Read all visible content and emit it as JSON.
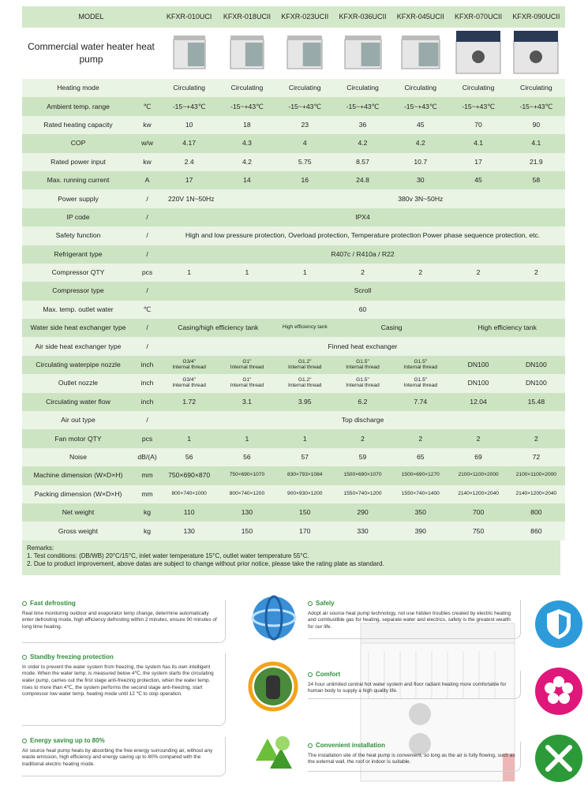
{
  "table": {
    "header": [
      "MODEL",
      "KFXR-010UCI",
      "KFXR-018UCII",
      "KFXR-023UCII",
      "KFXR-036UCII",
      "KFXR-045UCII",
      "KFXR-070UCII",
      "KFXR-090UCII"
    ],
    "product": "Commercial water heater heat pump",
    "rows": [
      {
        "label": "Heating mode",
        "unit": "",
        "cells": [
          "Circulating",
          "Circulating",
          "Circulating",
          "Circulating",
          "Circulating",
          "Circulating",
          "Circulating"
        ]
      },
      {
        "label": "Ambient temp. range",
        "unit": "℃",
        "cells": [
          "-15~+43℃",
          "-15~+43℃",
          "-15~+43℃",
          "-15~+43℃",
          "-15~+43℃",
          "-15~+43℃",
          "-15~+43℃"
        ]
      },
      {
        "label": "Rated heating capacity",
        "unit": "kw",
        "cells": [
          "10",
          "18",
          "23",
          "36",
          "45",
          "70",
          "90"
        ]
      },
      {
        "label": "COP",
        "unit": "w/w",
        "cells": [
          "4.17",
          "4.3",
          "4",
          "4.2",
          "4.2",
          "4.1",
          "4.1"
        ]
      },
      {
        "label": "Rated power input",
        "unit": "kw",
        "cells": [
          "2.4",
          "4.2",
          "5.75",
          "8.57",
          "10.7",
          "17",
          "21.9"
        ]
      },
      {
        "label": "Max. running current",
        "unit": "A",
        "cells": [
          "17",
          "14",
          "16",
          "24.8",
          "30",
          "45",
          "58"
        ]
      },
      {
        "label": "Power supply",
        "unit": "/",
        "cells": [
          "220V 1N~50Hz",
          "380v 3N~50Hz"
        ]
      },
      {
        "label": "IP code",
        "unit": "/",
        "cells": [
          "IPX4"
        ]
      },
      {
        "label": "Safety function",
        "unit": "/",
        "cells": [
          "High and low pressure protection, Overload protection, Temperature protection Power phase sequence protection, etc."
        ]
      },
      {
        "label": "Refrigerant type",
        "unit": "/",
        "cells": [
          "R407c / R410a / R22"
        ]
      },
      {
        "label": "Compressor QTY",
        "unit": "pcs",
        "cells": [
          "1",
          "1",
          "1",
          "2",
          "2",
          "2",
          "2"
        ]
      },
      {
        "label": "Compressor type",
        "unit": "/",
        "cells": [
          "Scroll"
        ]
      },
      {
        "label": "Max. temp. outlet water",
        "unit": "℃",
        "cells": [
          "60"
        ]
      },
      {
        "label": "Water side heat exchanger type",
        "unit": "/",
        "cells": [
          "Casing/high efficiency tank",
          "High efficiency tank",
          "Casing",
          "High efficiency tank"
        ]
      },
      {
        "label": "Air side heat exchanger type",
        "unit": "/",
        "cells": [
          "Finned heat exchanger"
        ]
      },
      {
        "label": "Circulating waterpipe nozzle",
        "unit": "inch",
        "cells": [
          "G3/4\"\nInternal thread",
          "G1\"\nInternal thread",
          "G1.2\"\nInternal thread",
          "G1.5\"\nInternal thread",
          "G1.5\"\nInternal thread",
          "DN100",
          "DN100"
        ]
      },
      {
        "label": "Outlet nozzle",
        "unit": "inch",
        "cells": [
          "G3/4\"\nInternal thread",
          "G1\"\nInternal thread",
          "G1.2\"\nInternal thread",
          "G1.5\"\nInternal thread",
          "G1.5\"\nInternal thread",
          "DN100",
          "DN100"
        ]
      },
      {
        "label": "Circulating water flow",
        "unit": "inch",
        "cells": [
          "1.72",
          "3.1",
          "3.95",
          "6.2",
          "7.74",
          "12.04",
          "15.48"
        ]
      },
      {
        "label": "Air out type",
        "unit": "/",
        "cells": [
          "Top discharge"
        ]
      },
      {
        "label": "Fan motor QTY",
        "unit": "pcs",
        "cells": [
          "1",
          "1",
          "1",
          "2",
          "2",
          "2",
          "2"
        ]
      },
      {
        "label": "Noise",
        "unit": "dB/(A)",
        "cells": [
          "56",
          "56",
          "57",
          "59",
          "65",
          "69",
          "72"
        ]
      },
      {
        "label": "Machine dimension (W×D×H)",
        "unit": "mm",
        "cells": [
          "750×690×870",
          "750×690×1070",
          "830×793×1084",
          "1500×690×1070",
          "1500×690×1270",
          "2100×1100×2000",
          "2100×1100×2000"
        ]
      },
      {
        "label": "Packing dimension (W×D×H)",
        "unit": "mm",
        "cells": [
          "800×740×1000",
          "800×740×1200",
          "900×930×1200",
          "1550×740×1200",
          "1550×740×1400",
          "2140×1200×2040",
          "2140×1200×2040"
        ]
      },
      {
        "label": "Net weight",
        "unit": "kg",
        "cells": [
          "110",
          "130",
          "150",
          "290",
          "350",
          "700",
          "800"
        ]
      },
      {
        "label": "Gross weight",
        "unit": "kg",
        "cells": [
          "130",
          "150",
          "170",
          "330",
          "390",
          "750",
          "860"
        ]
      }
    ]
  },
  "remarks": {
    "title": "Remarks:",
    "items": [
      "1. Test conditions: (DB/WB) 20°C/15°C, inlet water temperature 15°C, outlet water temperature 55°C.",
      "2. Due to product improvement, above datas are subject to change without prior notice, please take the rating plate as standard."
    ]
  },
  "features": [
    {
      "title": "Fast defrosting",
      "text": "Real time monitoring outdoor and evaporator temp change, determine automatically enter defrosting mode, high efficiency defrosting within 2 minutes, ensure 90 minutes of long time heating."
    },
    {
      "title": "Standby freezing protection",
      "text": "In order to prevent the water system from freezing, the system has its own intelligent mode. When the water temp. is measured below 4℃, the system starts the circulating water pump, carries out the first stage anti-freezing protection, when the water temp. rises to more than 4℃, the system performs the second stage anti-freezing, start compressor low water temp. heating mode until 12 ℃ to stop operation."
    },
    {
      "title": "Energy saving up to 80%",
      "text": "Air source heat pump heats by absorbing the free energy surrounding air, without any waste emission, high efficiency and energy saving up to 80% compared with the traditional electric heating mode."
    },
    {
      "title": "Safely",
      "text": "Adopt air source heat pump technology, not use hidden troubles created by electric heating and combustible gas for heating, separate water and electrics, safety is the greatest wealth for our life."
    },
    {
      "title": "Comfort",
      "text": "24 hour unlimited central hot water system and floor radiant heating more comfortable for human body to supply a high quality life."
    },
    {
      "title": "Convenient installation",
      "text": "The installation site of the heat pump is convenient, so long as the air is fully flowing, such as the external wall, the roof or indoor is suitable."
    }
  ]
}
